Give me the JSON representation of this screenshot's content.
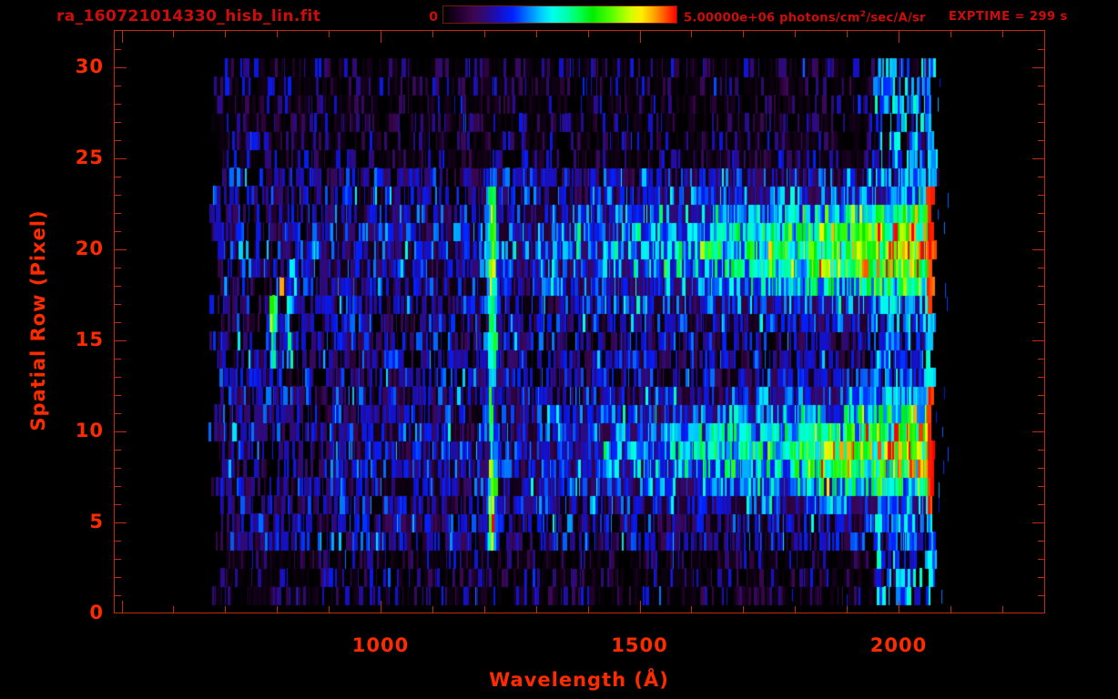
{
  "header": {
    "title": "ra_160721014330_hisb_lin.fit",
    "exptime_label": "EXPTIME = 299 s"
  },
  "colorbar": {
    "min_label": "0",
    "max_label_pre": "5.00000e+06 photons/cm",
    "max_label_sup": "2",
    "max_label_post": "/sec/A/sr"
  },
  "chart_data": {
    "type": "heatmap",
    "title": "ra_160721014330_hisb_lin.fit",
    "xlabel": "Wavelength (Å)",
    "ylabel": "Spatial Row (Pixel)",
    "xlim": [
      485,
      2283
    ],
    "ylim": [
      0,
      32.05
    ],
    "x_tick_labels": [
      "1000",
      "1500",
      "2000"
    ],
    "x_tick_label_values": [
      1000,
      1500,
      2000
    ],
    "x_major_ticks": [
      500,
      1000,
      1500,
      2000
    ],
    "x_minor_step": 100,
    "y_tick_labels": [
      "0",
      "5",
      "10",
      "15",
      "20",
      "25",
      "30"
    ],
    "y_major_ticks": [
      0,
      5,
      10,
      15,
      20,
      25,
      30
    ],
    "y_minor_step": 1,
    "grid": false,
    "legend": null,
    "exposure_time_s": 299,
    "intensity_scale": {
      "min": 0,
      "max": 5000000,
      "units": "photons/cm^2/sec/A/sr"
    },
    "colormap_stops": [
      {
        "pos": 0.0,
        "color": "#000000"
      },
      {
        "pos": 0.07,
        "color": "#23002e"
      },
      {
        "pos": 0.13,
        "color": "#3b0752"
      },
      {
        "pos": 0.18,
        "color": "#2e0a7a"
      },
      {
        "pos": 0.24,
        "color": "#1410c8"
      },
      {
        "pos": 0.3,
        "color": "#0022ff"
      },
      {
        "pos": 0.36,
        "color": "#0077ff"
      },
      {
        "pos": 0.42,
        "color": "#00ccff"
      },
      {
        "pos": 0.47,
        "color": "#00ffee"
      },
      {
        "pos": 0.53,
        "color": "#00ffaa"
      },
      {
        "pos": 0.58,
        "color": "#00ff55"
      },
      {
        "pos": 0.64,
        "color": "#00ee00"
      },
      {
        "pos": 0.72,
        "color": "#55ff00"
      },
      {
        "pos": 0.8,
        "color": "#ccff00"
      },
      {
        "pos": 0.85,
        "color": "#ffee00"
      },
      {
        "pos": 0.9,
        "color": "#ffaa00"
      },
      {
        "pos": 0.95,
        "color": "#ff5500"
      },
      {
        "pos": 1.0,
        "color": "#ff0000"
      }
    ],
    "data_extent": {
      "wavelength_min": 667,
      "wavelength_max": 2076,
      "row_min": 1,
      "row_max": 30
    },
    "seed": 160721,
    "features": {
      "noise": {
        "black_frac": 0.3,
        "purple_max": 0.25,
        "blue_min": 0.22,
        "blue_max": 0.36,
        "outer_rows_below": 4,
        "outer_rows_above": 24
      },
      "traces": [
        {
          "name": "upper-spectral-trace",
          "row_center": 20.0,
          "row_sigma": 2.7,
          "lambda_start": 1150,
          "lambda_full": 2050,
          "base_amp": 0.62,
          "floor_amp": 0.05
        },
        {
          "name": "lower-spectral-trace",
          "row_center": 9.0,
          "row_sigma": 2.5,
          "lambda_start": 1200,
          "lambda_full": 2060,
          "base_amp": 0.6,
          "floor_amp": 0.05
        }
      ],
      "emission_line": {
        "name": "lyman-alpha-line",
        "wavelength": 1216,
        "sigma": 8,
        "row_amps": [
          {
            "rows": [
              14,
              23
            ],
            "amp": 0.42,
            "jitter": 0.18
          },
          {
            "rows": [
              4,
              8
            ],
            "amp": 0.5,
            "jitter": 0.22
          },
          {
            "rows": [
              9,
              13
            ],
            "amp": 0.26,
            "jitter": 0.1
          }
        ]
      },
      "arc": {
        "name": "curved-airglow-arc",
        "row_min": 13.3,
        "row_max": 20.0,
        "row_vertex": 16.2,
        "lambda_vertex": 790,
        "curve_up": 5.6,
        "curve_down": 1.4,
        "sigma": 6,
        "amp": 0.34,
        "amp_core": 0.3,
        "core_row": 16.3,
        "second_offset": 30,
        "second_amp": 0.28
      },
      "right_zone": {
        "lambda_start": 1955,
        "red_start": 2056,
        "red_end": 2076,
        "speckle_amp": 0.3
      },
      "stray_columns": [
        {
          "wavelength": 1795,
          "row": 1
        },
        {
          "wavelength": 1900,
          "row": 0.7
        }
      ]
    }
  }
}
